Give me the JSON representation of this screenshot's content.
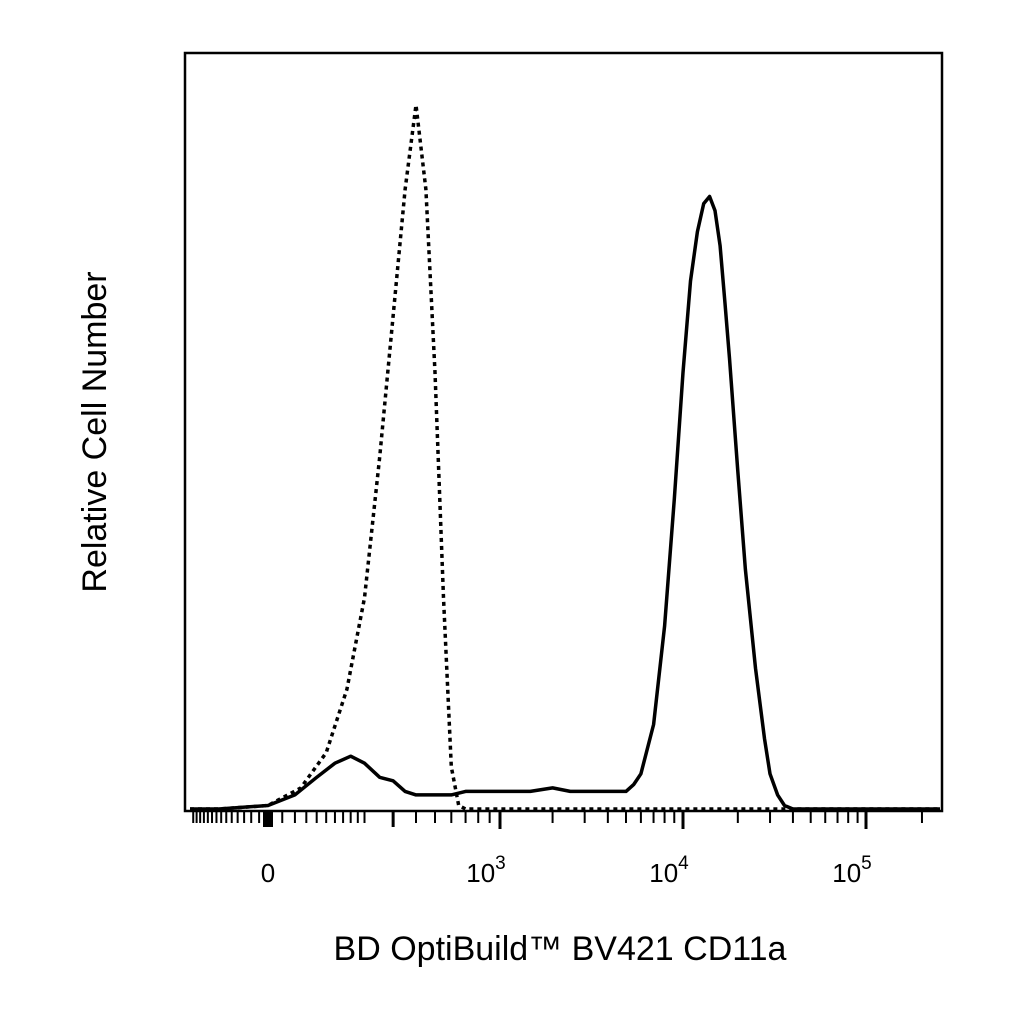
{
  "chart_data": {
    "type": "line",
    "title": "",
    "xlabel": "BD OptiBuild™ BV421 CD11a",
    "ylabel": "Relative Cell Number",
    "x_scale": "biexponential",
    "x_ticks": [
      {
        "label": "0",
        "base": "0",
        "exp": "",
        "value": 0
      },
      {
        "label": "10^3",
        "base": "10",
        "exp": "3",
        "value": 1000
      },
      {
        "label": "10^4",
        "base": "10",
        "exp": "4",
        "value": 10000
      },
      {
        "label": "10^5",
        "base": "10",
        "exp": "5",
        "value": 100000
      }
    ],
    "xlim": [
      -300,
      250000
    ],
    "ylim": [
      0,
      100
    ],
    "grid": false,
    "legend": "none",
    "series": [
      {
        "style": "dotted",
        "color": "#000000",
        "x": [
          -300,
          -150,
          0,
          50,
          100,
          150,
          200,
          250,
          300,
          350,
          400,
          450,
          500,
          550,
          600,
          650,
          700,
          800,
          1000,
          5000,
          250000
        ],
        "y": [
          0,
          0,
          0.5,
          3,
          8,
          17,
          30,
          50,
          70,
          88,
          100,
          88,
          62,
          30,
          6,
          0.5,
          0,
          0,
          0,
          0,
          0
        ]
      },
      {
        "style": "solid",
        "color": "#000000",
        "x": [
          -300,
          -150,
          0,
          40,
          80,
          120,
          160,
          200,
          250,
          300,
          350,
          400,
          450,
          500,
          600,
          700,
          800,
          1000,
          1500,
          2000,
          2500,
          3000,
          4000,
          5000,
          5500,
          6000,
          7000,
          8000,
          9000,
          10000,
          11000,
          12000,
          13000,
          14000,
          15000,
          16000,
          17000,
          18000,
          20000,
          22000,
          25000,
          28000,
          30000,
          33000,
          36000,
          40000,
          45000,
          50000,
          70000,
          100000,
          250000
        ],
        "y": [
          0,
          0,
          0.5,
          2,
          4.5,
          6.5,
          7.5,
          6.5,
          4.5,
          4,
          2.5,
          2,
          2,
          2,
          2,
          2.5,
          2.5,
          2.5,
          2.5,
          3,
          2.5,
          2.5,
          2.5,
          2.5,
          3.5,
          5,
          12,
          26,
          44,
          62,
          75,
          82,
          86,
          87,
          85,
          80,
          72,
          64,
          48,
          34,
          20,
          10,
          5,
          2,
          0.5,
          0,
          0,
          0,
          0,
          0,
          0
        ]
      }
    ]
  }
}
